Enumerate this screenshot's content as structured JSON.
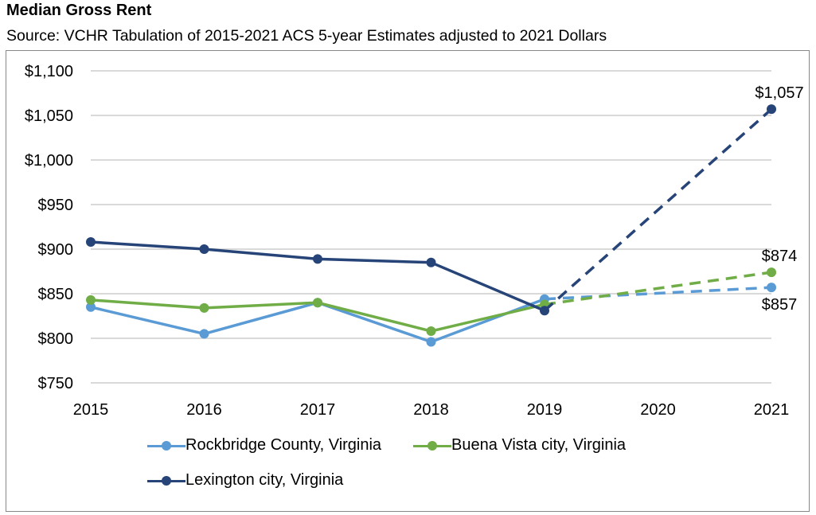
{
  "header": {
    "title": "Median Gross Rent",
    "subtitle": "Source: VCHR Tabulation of 2015-2021 ACS 5-year Estimates adjusted to 2021 Dollars"
  },
  "chart_data": {
    "type": "line",
    "title": "Median Gross Rent",
    "subtitle": "Source: VCHR Tabulation of 2015-2021 ACS 5-year Estimates adjusted to 2021 Dollars",
    "xlabel": "",
    "ylabel": "",
    "x": [
      2015,
      2016,
      2017,
      2018,
      2019,
      2020,
      2021
    ],
    "x_tick_labels": [
      "2015",
      "2016",
      "2017",
      "2018",
      "2019",
      "2020",
      "2021"
    ],
    "ylim": [
      750,
      1100
    ],
    "y_ticks": [
      750,
      800,
      850,
      900,
      950,
      1000,
      1050,
      1100
    ],
    "y_tick_labels": [
      "$750",
      "$800",
      "$850",
      "$900",
      "$950",
      "$1,000",
      "$1,050",
      "$1,100"
    ],
    "grid": true,
    "legend_position": "bottom",
    "note": "Solid lines 2015-2019; dashed projection line from 2019 to 2021 (no 2020 value).",
    "series": [
      {
        "name": "Rockbridge County, Virginia",
        "color": "#5B9BD5",
        "values": [
          835,
          805,
          840,
          796,
          844,
          null,
          857
        ],
        "end_label": "$857",
        "end_label_position": "below"
      },
      {
        "name": "Buena Vista city, Virginia",
        "color": "#70AD47",
        "values": [
          843,
          834,
          840,
          808,
          838,
          null,
          874
        ],
        "end_label": "$874",
        "end_label_position": "above"
      },
      {
        "name": "Lexington city, Virginia",
        "color": "#264478",
        "values": [
          908,
          900,
          889,
          885,
          831,
          null,
          1057
        ],
        "end_label": "$1,057",
        "end_label_position": "above"
      }
    ]
  },
  "legend": {
    "items": [
      {
        "label": "Rockbridge County, Virginia",
        "color": "#5B9BD5"
      },
      {
        "label": "Buena Vista city, Virginia",
        "color": "#70AD47"
      },
      {
        "label": "Lexington city, Virginia",
        "color": "#264478"
      }
    ]
  }
}
